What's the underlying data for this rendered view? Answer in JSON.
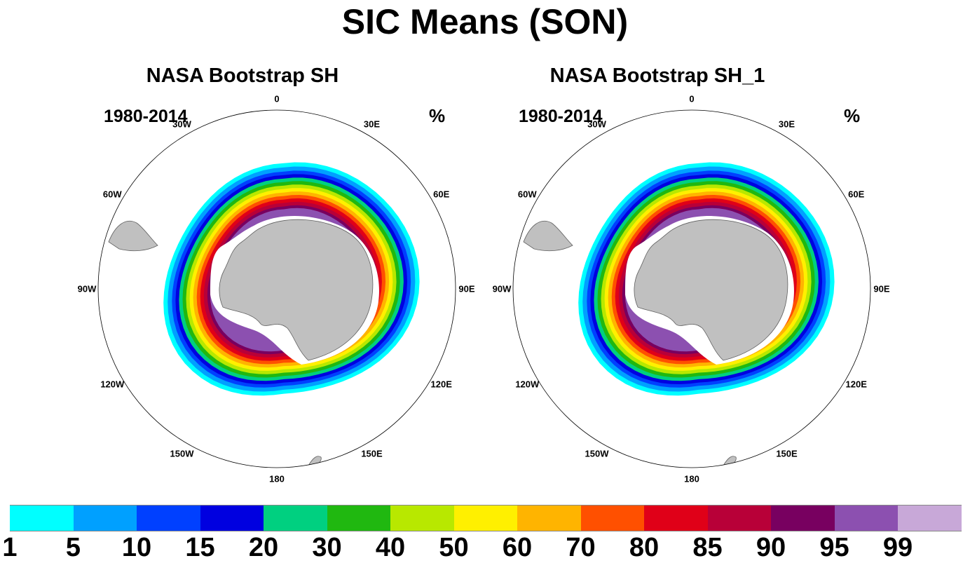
{
  "title": "SIC Means (SON)",
  "panels": [
    {
      "title": "NASA Bootstrap SH",
      "period": "1980-2014",
      "units": "%"
    },
    {
      "title": "NASA Bootstrap SH_1",
      "period": "1980-2014",
      "units": "%"
    }
  ],
  "longitude_labels": [
    "0",
    "30E",
    "60E",
    "90E",
    "120E",
    "150E",
    "180",
    "150W",
    "120W",
    "90W",
    "60W",
    "30W"
  ],
  "colorbar": {
    "levels": [
      "1",
      "5",
      "10",
      "15",
      "20",
      "30",
      "40",
      "50",
      "60",
      "70",
      "80",
      "85",
      "90",
      "95",
      "99"
    ],
    "colors": [
      "#00ffff",
      "#00a0ff",
      "#0040ff",
      "#0000e0",
      "#00d080",
      "#20b810",
      "#b8e800",
      "#fff000",
      "#ffb400",
      "#ff5000",
      "#e00018",
      "#b80038",
      "#780060",
      "#8c50b0",
      "#c8a8d8"
    ]
  },
  "chart_data": {
    "type": "heatmap",
    "title": "SIC Means (SON)",
    "projection": "south polar stereographic",
    "variable": "sea ice concentration",
    "units": "%",
    "period": "1980-2014",
    "season": "SON",
    "panels": [
      "NASA Bootstrap SH",
      "NASA Bootstrap SH_1"
    ],
    "contour_levels": [
      1,
      5,
      10,
      15,
      20,
      30,
      40,
      50,
      60,
      70,
      80,
      85,
      90,
      95,
      99
    ]
  }
}
